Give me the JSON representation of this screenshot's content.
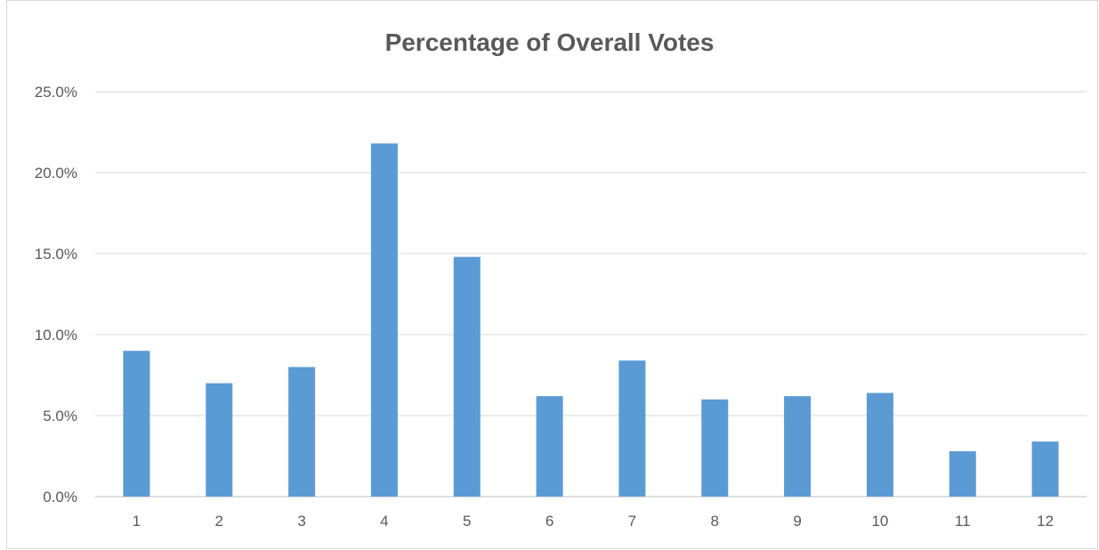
{
  "chart_data": {
    "type": "bar",
    "title": "Percentage of Overall Votes",
    "xlabel": "",
    "ylabel": "",
    "categories": [
      "1",
      "2",
      "3",
      "4",
      "5",
      "6",
      "7",
      "8",
      "9",
      "10",
      "11",
      "12"
    ],
    "values": [
      9.0,
      7.0,
      8.0,
      21.8,
      14.8,
      6.2,
      8.4,
      6.0,
      6.2,
      6.4,
      2.8,
      3.4
    ],
    "ylim": [
      0,
      25
    ],
    "yticks": [
      "0.0%",
      "5.0%",
      "10.0%",
      "15.0%",
      "20.0%",
      "25.0%"
    ],
    "grid": true,
    "legend": "none",
    "colors": {
      "bar": "#5b9bd5",
      "grid": "#d9d9d9",
      "text": "#595959"
    }
  }
}
